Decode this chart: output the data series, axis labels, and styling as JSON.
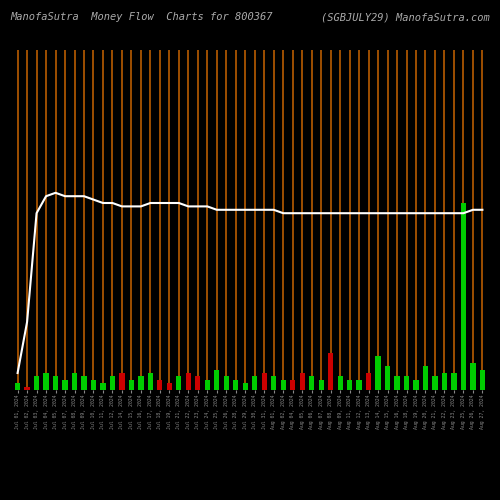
{
  "title_left": "ManofaSutra  Money Flow  Charts for 800367",
  "title_right": "(SGBJULY29) ManofaSutra.com",
  "background_color": "#000000",
  "orange_color": "#b85c00",
  "white_line_color": "#ffffff",
  "green_bar_color": "#00cc00",
  "red_bar_color": "#cc0000",
  "n_bars": 50,
  "dates": [
    "Jul 01, 2024",
    "Jul 02, 2024",
    "Jul 03, 2024",
    "Jul 04, 2024",
    "Jul 05, 2024",
    "Jul 07, 2024",
    "Jul 08, 2024",
    "Jul 09, 2024",
    "Jul 10, 2024",
    "Jul 11, 2024",
    "Jul 12, 2024",
    "Jul 14, 2024",
    "Jul 15, 2024",
    "Jul 16, 2024",
    "Jul 17, 2024",
    "Jul 18, 2024",
    "Jul 19, 2024",
    "Jul 21, 2024",
    "Jul 22, 2024",
    "Jul 23, 2024",
    "Jul 24, 2024",
    "Jul 25, 2024",
    "Jul 26, 2024",
    "Jul 28, 2024",
    "Jul 29, 2024",
    "Jul 30, 2024",
    "Jul 31, 2024",
    "Aug 01, 2024",
    "Aug 02, 2024",
    "Aug 04, 2024",
    "Aug 05, 2024",
    "Aug 06, 2024",
    "Aug 07, 2024",
    "Aug 08, 2024",
    "Aug 09, 2024",
    "Aug 11, 2024",
    "Aug 12, 2024",
    "Aug 13, 2024",
    "Aug 14, 2024",
    "Aug 15, 2024",
    "Aug 16, 2024",
    "Aug 18, 2024",
    "Aug 19, 2024",
    "Aug 20, 2024",
    "Aug 21, 2024",
    "Aug 22, 2024",
    "Aug 23, 2024",
    "Aug 25, 2024",
    "Aug 26, 2024",
    "Aug 27, 2024"
  ],
  "bar_heights": [
    2,
    1,
    4,
    5,
    4,
    3,
    5,
    4,
    3,
    2,
    4,
    5,
    3,
    4,
    5,
    3,
    2,
    4,
    5,
    4,
    3,
    6,
    4,
    3,
    2,
    4,
    5,
    4,
    3,
    3,
    5,
    4,
    3,
    11,
    4,
    3,
    3,
    5,
    10,
    7,
    4,
    4,
    3,
    7,
    4,
    5,
    5,
    55,
    8,
    6
  ],
  "bar_colors": [
    "green",
    "red",
    "green",
    "green",
    "green",
    "green",
    "green",
    "green",
    "green",
    "green",
    "green",
    "red",
    "green",
    "green",
    "green",
    "red",
    "red",
    "green",
    "red",
    "red",
    "green",
    "green",
    "green",
    "green",
    "green",
    "green",
    "red",
    "green",
    "green",
    "red",
    "red",
    "green",
    "green",
    "red",
    "green",
    "green",
    "green",
    "red",
    "green",
    "green",
    "green",
    "green",
    "green",
    "green",
    "green",
    "green",
    "green",
    "green",
    "green",
    "green"
  ],
  "white_line_y": [
    5,
    20,
    52,
    57,
    58,
    57,
    57,
    57,
    56,
    55,
    55,
    54,
    54,
    54,
    55,
    55,
    55,
    55,
    54,
    54,
    54,
    53,
    53,
    53,
    53,
    53,
    53,
    53,
    52,
    52,
    52,
    52,
    52,
    52,
    52,
    52,
    52,
    52,
    52,
    52,
    52,
    52,
    52,
    52,
    52,
    52,
    52,
    52,
    53,
    53
  ],
  "ylim": [
    0,
    100
  ],
  "title_fontsize": 7.5,
  "xlabel_fontsize": 3.5
}
